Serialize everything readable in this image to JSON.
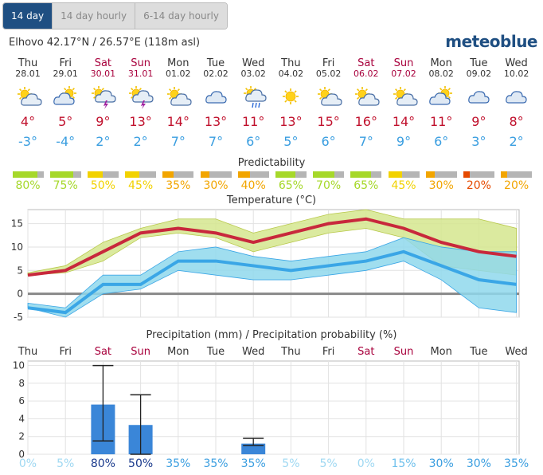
{
  "tabs": [
    {
      "label": "14 day",
      "active": true
    },
    {
      "label": "14 day hourly",
      "active": false
    },
    {
      "label": "6-14 day hourly",
      "active": false
    }
  ],
  "location": "Elhovo  42.17°N / 26.57°E (118m asl)",
  "brand": "meteoblue",
  "days": [
    {
      "name": "Thu",
      "date": "28.01",
      "weekend": false,
      "icon": "sun-cloud-icon",
      "max": "4°",
      "min": "-3°",
      "predictability": "80%",
      "pred_value": 80,
      "pred_color": "#a6d82a",
      "precip_prob": "0%",
      "prob_color": "#9fd8f2"
    },
    {
      "name": "Fri",
      "date": "29.01",
      "weekend": false,
      "icon": "cloud-sun-icon",
      "max": "5°",
      "min": "-4°",
      "predictability": "75%",
      "pred_value": 75,
      "pred_color": "#a6d82a",
      "precip_prob": "5%",
      "prob_color": "#9fd8f2"
    },
    {
      "name": "Sat",
      "date": "30.01",
      "weekend": true,
      "icon": "thunder-sun-icon",
      "max": "9°",
      "min": "2°",
      "predictability": "50%",
      "pred_value": 50,
      "pred_color": "#f2d200",
      "precip_prob": "80%",
      "prob_color": "#1a3a8c"
    },
    {
      "name": "Sun",
      "date": "31.01",
      "weekend": true,
      "icon": "thunder-sun-icon",
      "max": "13°",
      "min": "2°",
      "predictability": "45%",
      "pred_value": 45,
      "pred_color": "#f2d200",
      "precip_prob": "50%",
      "prob_color": "#1a3a8c"
    },
    {
      "name": "Mon",
      "date": "01.02",
      "weekend": false,
      "icon": "sun-cloud-icon",
      "max": "14°",
      "min": "7°",
      "predictability": "35%",
      "pred_value": 35,
      "pred_color": "#f2a500",
      "precip_prob": "35%",
      "prob_color": "#3a9ee0"
    },
    {
      "name": "Tue",
      "date": "02.02",
      "weekend": false,
      "icon": "cloud-icon",
      "max": "13°",
      "min": "7°",
      "predictability": "30%",
      "pred_value": 30,
      "pred_color": "#f2a500",
      "precip_prob": "35%",
      "prob_color": "#3a9ee0"
    },
    {
      "name": "Wed",
      "date": "03.02",
      "weekend": false,
      "icon": "rain-sun-icon",
      "max": "11°",
      "min": "6°",
      "predictability": "40%",
      "pred_value": 40,
      "pred_color": "#f2a500",
      "precip_prob": "35%",
      "prob_color": "#3a9ee0"
    },
    {
      "name": "Thu",
      "date": "04.02",
      "weekend": false,
      "icon": "sun-icon",
      "max": "13°",
      "min": "5°",
      "predictability": "65%",
      "pred_value": 65,
      "pred_color": "#a6d82a",
      "precip_prob": "5%",
      "prob_color": "#9fd8f2"
    },
    {
      "name": "Fri",
      "date": "05.02",
      "weekend": false,
      "icon": "sun-cloud-icon",
      "max": "15°",
      "min": "6°",
      "predictability": "70%",
      "pred_value": 70,
      "pred_color": "#a6d82a",
      "precip_prob": "5%",
      "prob_color": "#9fd8f2"
    },
    {
      "name": "Sat",
      "date": "06.02",
      "weekend": true,
      "icon": "sun-cloud-icon",
      "max": "16°",
      "min": "7°",
      "predictability": "65%",
      "pred_value": 65,
      "pred_color": "#a6d82a",
      "precip_prob": "0%",
      "prob_color": "#9fd8f2"
    },
    {
      "name": "Sun",
      "date": "07.02",
      "weekend": true,
      "icon": "sun-cloud-icon",
      "max": "14°",
      "min": "9°",
      "predictability": "45%",
      "pred_value": 45,
      "pred_color": "#f2d200",
      "precip_prob": "15%",
      "prob_color": "#6ec0ec"
    },
    {
      "name": "Mon",
      "date": "08.02",
      "weekend": false,
      "icon": "cloud-sun-icon",
      "max": "11°",
      "min": "6°",
      "predictability": "30%",
      "pred_value": 30,
      "pred_color": "#f2a500",
      "precip_prob": "30%",
      "prob_color": "#3a9ee0"
    },
    {
      "name": "Tue",
      "date": "09.02",
      "weekend": false,
      "icon": "cloud-icon",
      "max": "9°",
      "min": "3°",
      "predictability": "20%",
      "pred_value": 20,
      "pred_color": "#e64a00",
      "precip_prob": "30%",
      "prob_color": "#3a9ee0"
    },
    {
      "name": "Wed",
      "date": "10.02",
      "weekend": false,
      "icon": "cloud-icon",
      "max": "8°",
      "min": "2°",
      "predictability": "20%",
      "pred_value": 20,
      "pred_color": "#f2a500",
      "precip_prob": "35%",
      "prob_color": "#3a9ee0"
    }
  ],
  "predictability_title": "Predictability",
  "temperature_title": "Temperature (°C)",
  "precip_title": "Precipitation (mm) / Precipitation probability (%)",
  "colors": {
    "max_line": "#c8283c",
    "min_line": "#3aa6e6",
    "max_band": "#d5e68e",
    "min_band": "#8fd8ec",
    "bar": "#3a86d8",
    "weekend": "#a8003c"
  },
  "chart_data": [
    {
      "type": "line",
      "title": "Temperature (°C)",
      "categories": [
        "Thu",
        "Fri",
        "Sat",
        "Sun",
        "Mon",
        "Tue",
        "Wed",
        "Thu",
        "Fri",
        "Sat",
        "Sun",
        "Mon",
        "Tue",
        "Wed"
      ],
      "ylim": [
        -5,
        18
      ],
      "yticks": [
        -5,
        0,
        5,
        10,
        15
      ],
      "series": [
        {
          "name": "max",
          "values": [
            4,
            5,
            9,
            13,
            14,
            13,
            11,
            13,
            15,
            16,
            14,
            11,
            9,
            8
          ]
        },
        {
          "name": "min",
          "values": [
            -3,
            -4,
            2,
            2,
            7,
            7,
            6,
            5,
            6,
            7,
            9,
            6,
            3,
            2
          ]
        }
      ],
      "max_band": {
        "low": [
          4,
          4.5,
          7,
          12,
          13,
          12,
          9,
          11,
          13,
          14,
          12,
          6,
          5,
          4
        ],
        "high": [
          4.5,
          6,
          11,
          14,
          16,
          16,
          13,
          15,
          17,
          18,
          16,
          16,
          16,
          14
        ]
      },
      "min_band": {
        "low": [
          -3,
          -5,
          0,
          1,
          5,
          4,
          3,
          3,
          4,
          5,
          7,
          3,
          -3,
          -4
        ],
        "high": [
          -2,
          -3,
          4,
          4,
          9,
          10,
          8,
          7,
          8,
          9,
          12,
          10,
          9,
          9
        ]
      },
      "grid": true
    },
    {
      "type": "bar",
      "title": "Precipitation (mm) / Precipitation probability (%)",
      "categories": [
        "Thu",
        "Fri",
        "Sat",
        "Sun",
        "Mon",
        "Tue",
        "Wed",
        "Thu",
        "Fri",
        "Sat",
        "Sun",
        "Mon",
        "Tue",
        "Wed"
      ],
      "values": [
        0,
        0,
        5.6,
        3.3,
        0,
        0,
        1.2,
        0,
        0,
        0,
        0,
        0,
        0,
        0
      ],
      "error_high": [
        null,
        null,
        10,
        6.7,
        null,
        null,
        1.8,
        null,
        null,
        null,
        null,
        null,
        null,
        null
      ],
      "error_low": [
        null,
        null,
        1.5,
        0,
        null,
        null,
        1.0,
        null,
        null,
        null,
        null,
        null,
        null,
        null
      ],
      "ylim": [
        0,
        10.5
      ],
      "yticks": [
        0,
        2,
        4,
        6,
        8,
        10
      ],
      "probability": [
        "0%",
        "5%",
        "80%",
        "50%",
        "35%",
        "35%",
        "35%",
        "5%",
        "5%",
        "0%",
        "15%",
        "30%",
        "30%",
        "35%"
      ],
      "grid": true
    }
  ]
}
